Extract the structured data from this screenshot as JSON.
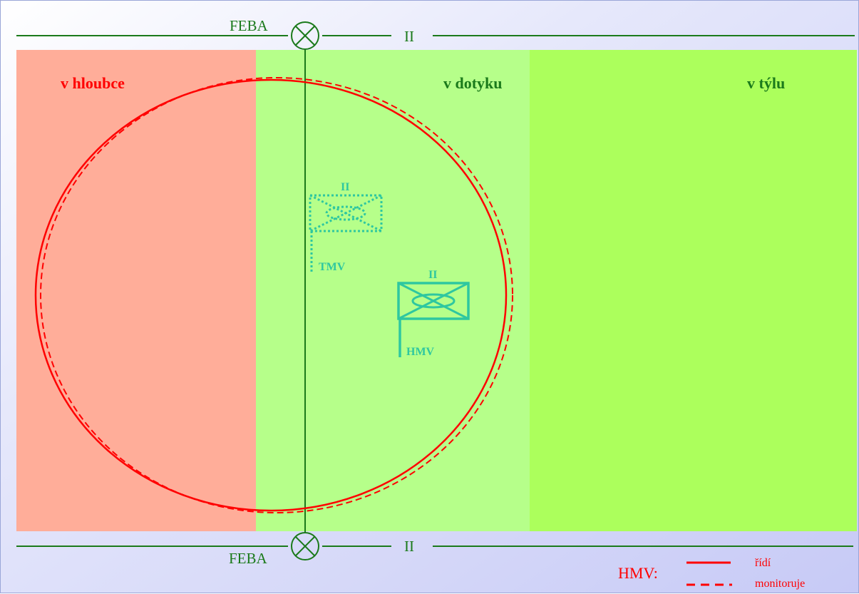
{
  "boundary": {
    "top_label": "FEBA",
    "bottom_label": "FEBA",
    "echelon_top": "II",
    "echelon_bottom": "II"
  },
  "zones": {
    "deep": {
      "label": "v hloubce",
      "color": "#ffad99",
      "text_color": "#ff0000"
    },
    "contact": {
      "label": "v dotyku",
      "color": "#b6ff8a",
      "text_color": "#1b7a1b"
    },
    "rear": {
      "label": "v týlu",
      "color": "#acff5c",
      "text_color": "#1b7a1b"
    }
  },
  "units": {
    "tmv": {
      "label": "TMV",
      "echelon": "II",
      "color": "#2ec7a0",
      "style": "dotted"
    },
    "hmv": {
      "label": "HMV",
      "echelon": "II",
      "color": "#2ec7a0",
      "style": "solid"
    }
  },
  "legend": {
    "title": "HMV:",
    "solid_label": "řídí",
    "dashed_label": "monitoruje",
    "color": "#ff0000"
  },
  "colors": {
    "boundary_line": "#1b7a1b",
    "area_circle": "#ff0000"
  }
}
